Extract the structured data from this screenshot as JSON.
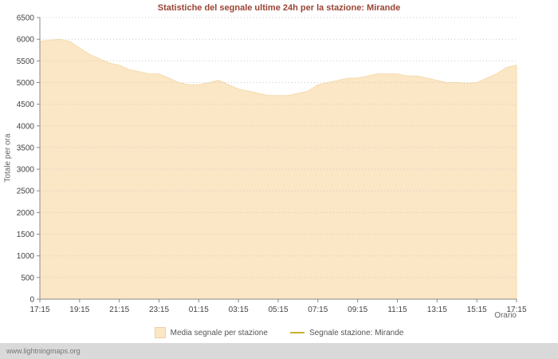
{
  "chart_data": {
    "type": "area",
    "title": "Statistiche del segnale ultime 24h per la stazione: Mirande",
    "ylabel": "Totale per ora",
    "xlabel": "Orario",
    "ylim": [
      0,
      6500
    ],
    "ytick_step": 500,
    "grid": "dotted-horizontal",
    "legend_position": "bottom",
    "x_tick_labels": [
      "17:15",
      "19:15",
      "21:15",
      "23:15",
      "01:15",
      "03:15",
      "05:15",
      "07:15",
      "09:15",
      "11:15",
      "13:15",
      "15:15",
      "17:15"
    ],
    "x_interval_minutes": 30,
    "series": [
      {
        "name": "Media segnale per stazione",
        "type": "area",
        "color": "#FBE6C5",
        "edge_color": "#F5DCAD",
        "values": [
          5950,
          5980,
          6000,
          5950,
          5800,
          5650,
          5550,
          5450,
          5400,
          5300,
          5250,
          5200,
          5200,
          5100,
          5000,
          4950,
          4950,
          5000,
          5050,
          4950,
          4850,
          4800,
          4750,
          4700,
          4700,
          4700,
          4750,
          4800,
          4950,
          5000,
          5050,
          5100,
          5100,
          5150,
          5200,
          5200,
          5200,
          5150,
          5150,
          5100,
          5050,
          5000,
          5000,
          4980,
          5000,
          5100,
          5200,
          5350,
          5400
        ]
      },
      {
        "name": "Segnale stazione: Mirande",
        "type": "line",
        "color": "#C6B22E",
        "values": []
      }
    ],
    "colors": {
      "title": "#9A4434",
      "grid": "#CCCCCC",
      "axis": "#888888",
      "tick_text": "#444444"
    }
  },
  "watermark": "www.lightningmaps.org"
}
